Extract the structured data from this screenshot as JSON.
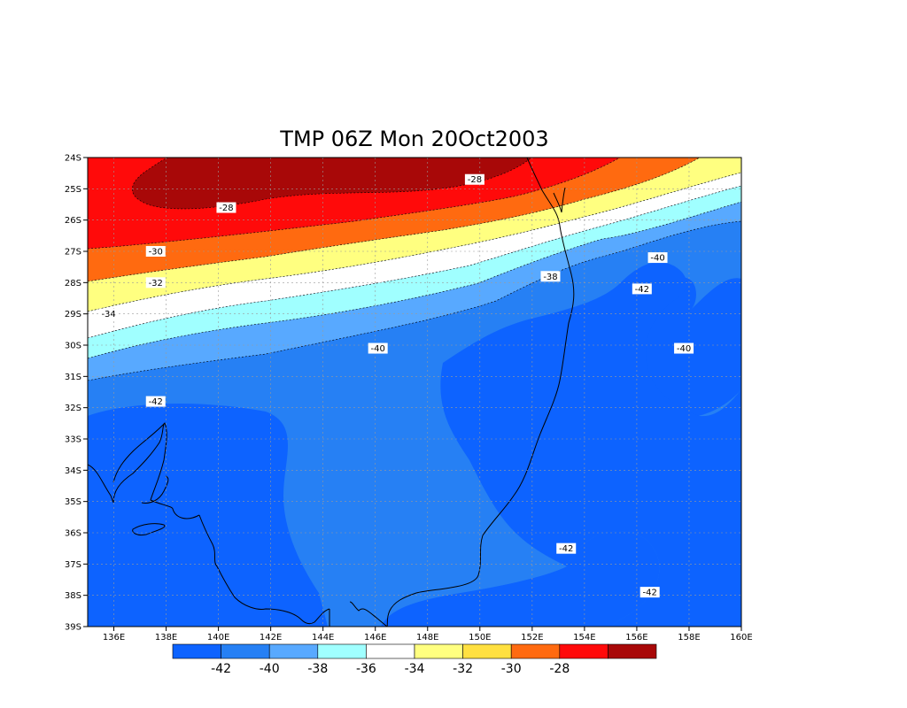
{
  "title": "TMP 06Z Mon 20Oct2003",
  "map": {
    "lat_ticks": [
      "24S",
      "25S",
      "26S",
      "27S",
      "28S",
      "29S",
      "30S",
      "31S",
      "32S",
      "33S",
      "34S",
      "35S",
      "36S",
      "37S",
      "38S",
      "39S"
    ],
    "lon_ticks": [
      "136E",
      "138E",
      "140E",
      "142E",
      "144E",
      "146E",
      "148E",
      "150E",
      "152E",
      "154E",
      "156E",
      "158E",
      "160E"
    ],
    "lon_range": [
      135,
      160
    ],
    "lat_range": [
      -39,
      -24
    ],
    "grid": true
  },
  "contour_labels": [
    {
      "text": "-28",
      "lon": 140.3,
      "lat": -25.6
    },
    {
      "text": "-28",
      "lon": 149.8,
      "lat": -24.7
    },
    {
      "text": "-30",
      "lon": 137.6,
      "lat": -27.0
    },
    {
      "text": "-32",
      "lon": 137.6,
      "lat": -28.0
    },
    {
      "text": "-34",
      "lon": 135.8,
      "lat": -29.0
    },
    {
      "text": "-38",
      "lon": 152.7,
      "lat": -27.8
    },
    {
      "text": "-40",
      "lon": 156.8,
      "lat": -27.2
    },
    {
      "text": "-42",
      "lon": 156.2,
      "lat": -28.2
    },
    {
      "text": "-40",
      "lon": 146.1,
      "lat": -30.1
    },
    {
      "text": "-40",
      "lon": 157.8,
      "lat": -30.1
    },
    {
      "text": "-42",
      "lon": 137.6,
      "lat": -31.8
    },
    {
      "text": "-42",
      "lon": 153.3,
      "lat": -36.5
    },
    {
      "text": "-42",
      "lon": 156.5,
      "lat": -37.9
    }
  ],
  "colorbar": {
    "colors": [
      "#0d63ff",
      "#2680f4",
      "#58a9ff",
      "#a0ffff",
      "#ffffff",
      "#ffff80",
      "#ffe040",
      "#ff6a10",
      "#ff0a0a",
      "#a80808"
    ],
    "labels": [
      "-42",
      "-40",
      "-38",
      "-36",
      "-34",
      "-32",
      "-30",
      "-28"
    ]
  },
  "colors": {
    "c_lt42": "#0d63ff",
    "c_40_42": "#2680f4",
    "c_38_40": "#58a9ff",
    "c_36_38": "#a0ffff",
    "c_34_36": "#ffffff",
    "c_32_34": "#ffff80",
    "c_30_32": "#ff6a10",
    "c_28_30": "#ff0a0a",
    "c_gt28": "#a80808"
  }
}
